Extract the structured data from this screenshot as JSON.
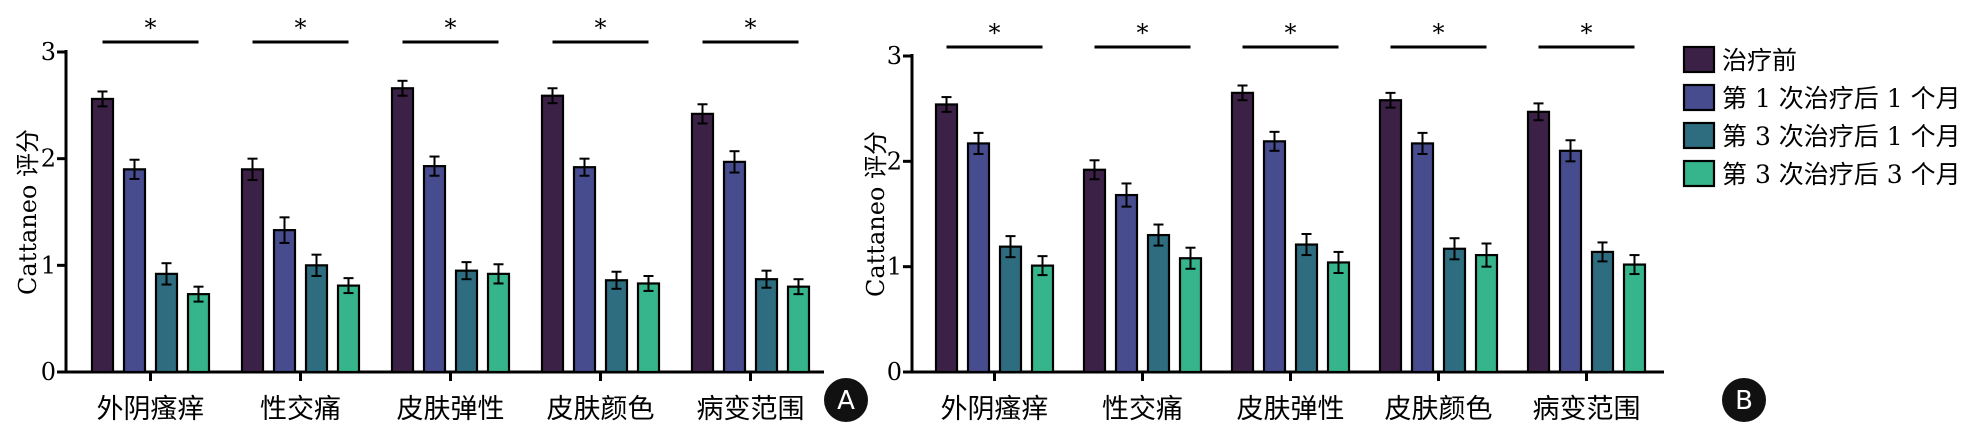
{
  "legend_entries": [
    "治疗前",
    "第 1 次治疗后 1 个月",
    "第 3 次治疗后 1 个月",
    "第 3 次治疗后 3 个月"
  ],
  "series_colors": [
    "#3b2145",
    "#474c8f",
    "#2e6d80",
    "#36b48c"
  ],
  "chart_data": [
    {
      "type": "bar",
      "panel": "A",
      "title": "",
      "xlabel": "",
      "ylabel": "Cattaneo 评分",
      "ylim": [
        0,
        3
      ],
      "yticks": [
        0,
        1,
        2,
        3
      ],
      "categories": [
        "外阴瘙痒",
        "性交痛",
        "皮肤弹性",
        "皮肤颜色",
        "病变范围"
      ],
      "series": [
        {
          "name": "治疗前",
          "values": [
            2.56,
            1.9,
            2.66,
            2.59,
            2.42
          ],
          "errors": [
            0.07,
            0.1,
            0.07,
            0.07,
            0.09
          ]
        },
        {
          "name": "第 1 次治疗后 1 个月",
          "values": [
            1.9,
            1.33,
            1.93,
            1.92,
            1.97
          ],
          "errors": [
            0.09,
            0.12,
            0.09,
            0.08,
            0.1
          ]
        },
        {
          "name": "第 3 次治疗后 1 个月",
          "values": [
            0.92,
            1.0,
            0.95,
            0.86,
            0.87
          ],
          "errors": [
            0.1,
            0.1,
            0.08,
            0.08,
            0.08
          ]
        },
        {
          "name": "第 3 次治疗后 3 个月",
          "values": [
            0.73,
            0.81,
            0.92,
            0.83,
            0.8
          ],
          "errors": [
            0.07,
            0.07,
            0.09,
            0.07,
            0.07
          ]
        }
      ],
      "significance": [
        "*",
        "*",
        "*",
        "*",
        "*"
      ]
    },
    {
      "type": "bar",
      "panel": "B",
      "title": "",
      "xlabel": "",
      "ylabel": "Cattaneo 评分",
      "ylim": [
        0,
        3
      ],
      "yticks": [
        0,
        1,
        2,
        3
      ],
      "categories": [
        "外阴瘙痒",
        "性交痛",
        "皮肤弹性",
        "皮肤颜色",
        "病变范围"
      ],
      "series": [
        {
          "name": "治疗前",
          "values": [
            2.54,
            1.92,
            2.65,
            2.58,
            2.47
          ],
          "errors": [
            0.07,
            0.09,
            0.07,
            0.07,
            0.08
          ]
        },
        {
          "name": "第 1 次治疗后 1 个月",
          "values": [
            2.17,
            1.68,
            2.19,
            2.17,
            2.1
          ],
          "errors": [
            0.1,
            0.11,
            0.09,
            0.1,
            0.1
          ]
        },
        {
          "name": "第 3 次治疗后 1 个月",
          "values": [
            1.19,
            1.3,
            1.21,
            1.17,
            1.14
          ],
          "errors": [
            0.1,
            0.1,
            0.1,
            0.1,
            0.09
          ]
        },
        {
          "name": "第 3 次治疗后 3 个月",
          "values": [
            1.01,
            1.08,
            1.04,
            1.11,
            1.02
          ],
          "errors": [
            0.09,
            0.1,
            0.1,
            0.11,
            0.09
          ]
        }
      ],
      "significance": [
        "*",
        "*",
        "*",
        "*",
        "*"
      ]
    }
  ]
}
